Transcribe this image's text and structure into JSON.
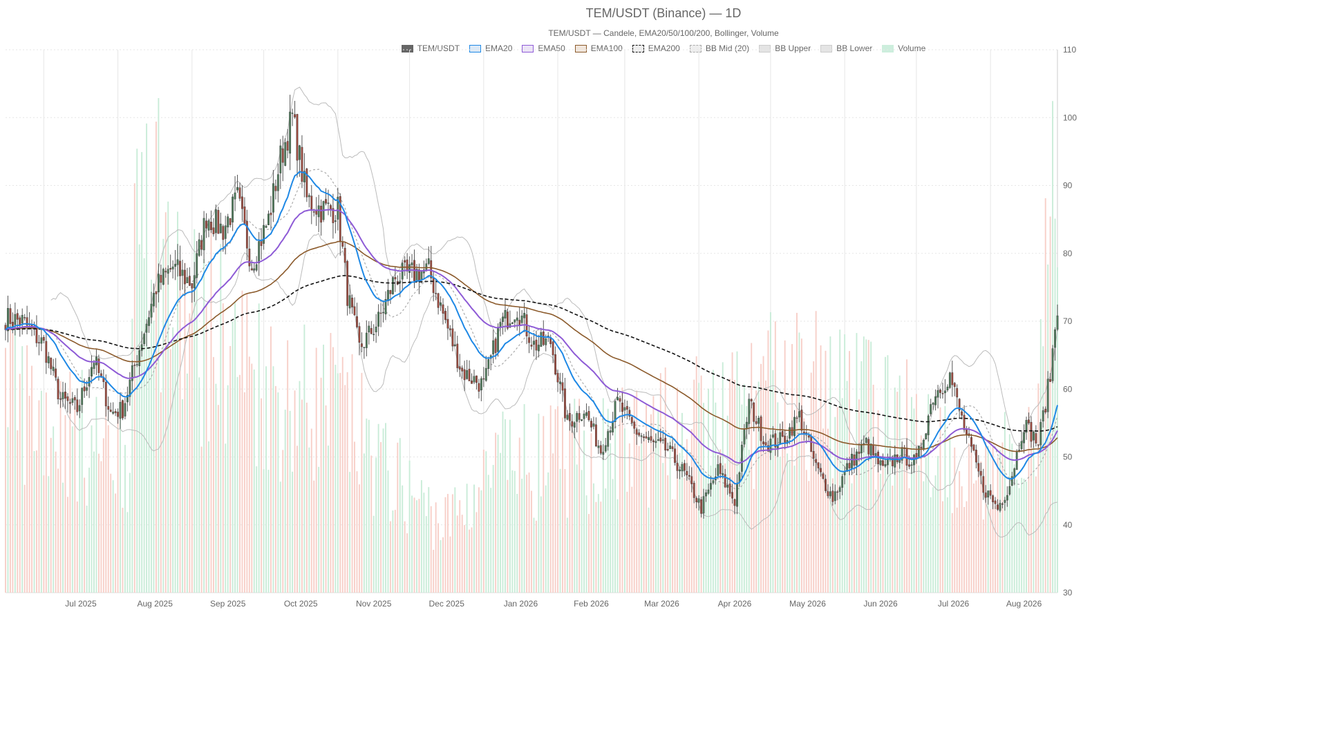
{
  "chart_data": {
    "type": "candlestick",
    "title": "TEM/USDT (Binance) — 1D",
    "subtitle": "TEM/USDT — Candele, EMA20/50/100/200, Bollinger, Volume",
    "legend": [
      {
        "name": "TEM/USDT",
        "fill": "#666666",
        "border": "#666666",
        "dashed": false
      },
      {
        "name": "EMA20",
        "fill": "#dbe9f7",
        "border": "#1e88e5",
        "dashed": false
      },
      {
        "name": "EMA50",
        "fill": "#ece4f7",
        "border": "#8e5bd6",
        "dashed": false
      },
      {
        "name": "EMA100",
        "fill": "#f1e6dc",
        "border": "#8b5a2b",
        "dashed": false
      },
      {
        "name": "EMA200",
        "fill": "#eeeeee",
        "border": "#111111",
        "dashed": true
      },
      {
        "name": "BB Mid (20)",
        "fill": "#eeeeee",
        "border": "#aaaaaa",
        "dashed": true
      },
      {
        "name": "BB Upper",
        "fill": "#e4e4e4",
        "border": "#cccccc",
        "dashed": false
      },
      {
        "name": "BB Lower",
        "fill": "#e4e4e4",
        "border": "#cccccc",
        "dashed": false
      },
      {
        "name": "Volume",
        "fill": "#cdeedd",
        "border": "#cdeedd",
        "dashed": false
      }
    ],
    "ylim": [
      30,
      110
    ],
    "y_ticks": [
      30,
      40,
      50,
      60,
      70,
      80,
      90,
      100,
      110
    ],
    "x_range": [
      "2025-06-15",
      "2026-08-29"
    ],
    "x_ticks": [
      {
        "label": "Jul 2025",
        "date": "2025-07-01"
      },
      {
        "label": "Aug 2025",
        "date": "2025-08-01"
      },
      {
        "label": "Sep 2025",
        "date": "2025-09-01"
      },
      {
        "label": "Oct 2025",
        "date": "2025-10-01"
      },
      {
        "label": "Nov 2025",
        "date": "2025-11-01"
      },
      {
        "label": "Dec 2025",
        "date": "2025-12-01"
      },
      {
        "label": "Jan 2026",
        "date": "2026-01-01"
      },
      {
        "label": "Feb 2026",
        "date": "2026-02-01"
      },
      {
        "label": "Mar 2026",
        "date": "2026-03-01"
      },
      {
        "label": "Apr 2026",
        "date": "2026-04-01"
      },
      {
        "label": "May 2026",
        "date": "2026-05-01"
      },
      {
        "label": "Jun 2026",
        "date": "2026-06-01"
      },
      {
        "label": "Jul 2026",
        "date": "2026-07-01"
      },
      {
        "label": "Aug 2026",
        "date": "2026-08-01"
      }
    ],
    "colors": {
      "up": "#4e7a5a",
      "down": "#9c4a3e",
      "vol_up": "#c9ecd8",
      "vol_down": "#f7cfc8",
      "ema20": "#1e88e5",
      "ema50": "#8e5bd6",
      "ema100": "#8b5a2b",
      "ema200": "#111111",
      "bb_mid": "#aaaaaa",
      "bb_band": "#bbbbbb",
      "grid": "#e6e6e6"
    },
    "close_anchors": [
      [
        "2025-06-15",
        70.5
      ],
      [
        "2025-06-22",
        70.0
      ],
      [
        "2025-07-01",
        66.5
      ],
      [
        "2025-07-08",
        58.5
      ],
      [
        "2025-07-15",
        57.0
      ],
      [
        "2025-07-22",
        64.5
      ],
      [
        "2025-07-29",
        56.5
      ],
      [
        "2025-08-03",
        57.0
      ],
      [
        "2025-08-10",
        66.0
      ],
      [
        "2025-08-17",
        75.0
      ],
      [
        "2025-08-24",
        78.0
      ],
      [
        "2025-09-01",
        75.5
      ],
      [
        "2025-09-07",
        85.5
      ],
      [
        "2025-09-14",
        83.5
      ],
      [
        "2025-09-20",
        88.0
      ],
      [
        "2025-09-26",
        78.5
      ],
      [
        "2025-10-03",
        85.0
      ],
      [
        "2025-10-08",
        94.0
      ],
      [
        "2025-10-13",
        100.0
      ],
      [
        "2025-10-19",
        88.0
      ],
      [
        "2025-10-25",
        86.5
      ],
      [
        "2025-11-01",
        86.5
      ],
      [
        "2025-11-05",
        74.0
      ],
      [
        "2025-11-10",
        66.0
      ],
      [
        "2025-11-18",
        70.0
      ],
      [
        "2025-11-25",
        76.5
      ],
      [
        "2025-12-02",
        77.0
      ],
      [
        "2025-12-09",
        77.5
      ],
      [
        "2025-12-16",
        70.0
      ],
      [
        "2025-12-23",
        62.5
      ],
      [
        "2026-01-01",
        60.5
      ],
      [
        "2026-01-08",
        69.5
      ],
      [
        "2026-01-15",
        72.0
      ],
      [
        "2026-01-22",
        66.5
      ],
      [
        "2026-01-29",
        67.0
      ],
      [
        "2026-02-05",
        55.0
      ],
      [
        "2026-02-12",
        57.0
      ],
      [
        "2026-02-19",
        51.0
      ],
      [
        "2026-02-26",
        58.0
      ],
      [
        "2026-03-05",
        54.0
      ],
      [
        "2026-03-12",
        52.0
      ],
      [
        "2026-03-19",
        51.0
      ],
      [
        "2026-03-26",
        47.5
      ],
      [
        "2026-04-02",
        42.5
      ],
      [
        "2026-04-09",
        48.0
      ],
      [
        "2026-04-16",
        43.5
      ],
      [
        "2026-04-22",
        58.0
      ],
      [
        "2026-04-29",
        52.0
      ],
      [
        "2026-05-06",
        52.5
      ],
      [
        "2026-05-13",
        56.0
      ],
      [
        "2026-05-20",
        48.5
      ],
      [
        "2026-05-27",
        44.0
      ],
      [
        "2026-06-03",
        49.0
      ],
      [
        "2026-06-10",
        52.0
      ],
      [
        "2026-06-17",
        48.0
      ],
      [
        "2026-06-24",
        50.5
      ],
      [
        "2026-07-01",
        49.0
      ],
      [
        "2026-07-08",
        59.0
      ],
      [
        "2026-07-15",
        62.0
      ],
      [
        "2026-07-22",
        53.0
      ],
      [
        "2026-07-29",
        45.5
      ],
      [
        "2026-08-04",
        42.5
      ],
      [
        "2026-08-09",
        46.0
      ],
      [
        "2026-08-15",
        55.0
      ],
      [
        "2026-08-21",
        52.0
      ],
      [
        "2026-08-26",
        62.0
      ],
      [
        "2026-08-29",
        72.5
      ]
    ],
    "volume_anchors": [
      [
        "2025-06-15",
        29000
      ],
      [
        "2025-07-01",
        26000
      ],
      [
        "2025-07-20",
        22000
      ],
      [
        "2025-08-05",
        21000
      ],
      [
        "2025-08-12",
        68000
      ],
      [
        "2025-08-25",
        40000
      ],
      [
        "2025-09-20",
        35000
      ],
      [
        "2025-10-10",
        28000
      ],
      [
        "2025-11-01",
        27000
      ],
      [
        "2025-11-20",
        18000
      ],
      [
        "2025-12-15",
        10000
      ],
      [
        "2026-01-10",
        19000
      ],
      [
        "2026-01-25",
        19000
      ],
      [
        "2026-02-15",
        20000
      ],
      [
        "2026-03-10",
        22000
      ],
      [
        "2026-04-10",
        25000
      ],
      [
        "2026-05-10",
        30000
      ],
      [
        "2026-06-10",
        27000
      ],
      [
        "2026-07-10",
        22000
      ],
      [
        "2026-08-01",
        15000
      ],
      [
        "2026-08-20",
        26000
      ],
      [
        "2026-08-29",
        65000
      ]
    ]
  }
}
